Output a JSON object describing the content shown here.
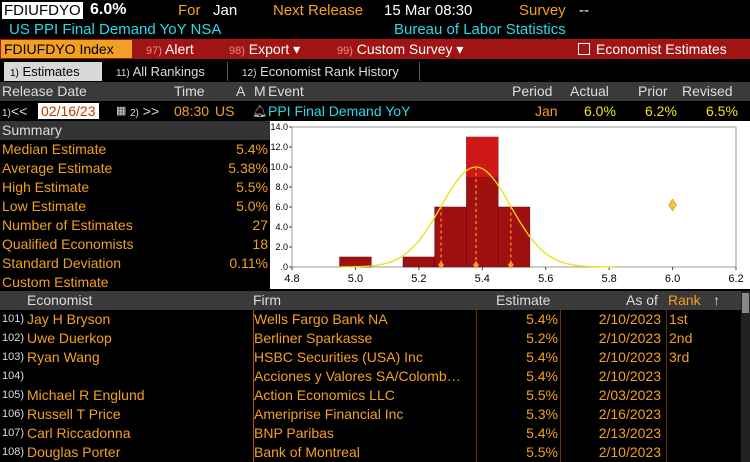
{
  "header": {
    "ticker": "FDIUFDYO",
    "value": "6.0%",
    "for_label": "For",
    "for_value": "Jan",
    "next_release_label": "Next Release",
    "next_release_value": "15 Mar 08:30",
    "survey_label": "Survey",
    "survey_value": "--",
    "description": "US PPI Final Demand YoY NSA",
    "source": "Bureau of Labor Statistics"
  },
  "toolbar": {
    "ticker_index": "FDIUFDYO Index",
    "alert_num": "97)",
    "alert_label": "Alert",
    "export_num": "98)",
    "export_label": "Export ▾",
    "custom_num": "99)",
    "custom_label": "Custom Survey ▾",
    "economist_label": "Economist Estimates"
  },
  "tabs": [
    {
      "num": "1)",
      "label": "Estimates"
    },
    {
      "num": "11)",
      "label": "All Rankings"
    },
    {
      "num": "12)",
      "label": "Economist Rank History"
    }
  ],
  "release_header": {
    "release_date": "Release Date",
    "time": "Time",
    "a": "A",
    "m": "M",
    "event": "Event",
    "period": "Period",
    "actual": "Actual",
    "prior": "Prior",
    "revised": "Revised"
  },
  "release_row": {
    "prev_num": "1)",
    "prev": "<<",
    "date": "02/16/23",
    "next_num": "2)",
    "next": ">>",
    "time": "08:30",
    "country": "US",
    "event": "PPI Final Demand YoY",
    "period": "Jan",
    "actual": "6.0%",
    "prior": "6.2%",
    "revised": "6.5%"
  },
  "summary": {
    "title": "Summary",
    "rows": [
      {
        "label": "Median Estimate",
        "value": "5.4%"
      },
      {
        "label": "Average Estimate",
        "value": "5.38%"
      },
      {
        "label": "High Estimate",
        "value": "5.5%"
      },
      {
        "label": "Low Estimate",
        "value": "5.0%"
      },
      {
        "label": "Number of Estimates",
        "value": "27"
      },
      {
        "label": "Qualified Economists",
        "value": "18"
      },
      {
        "label": "Standard Deviation",
        "value": "0.11%"
      },
      {
        "label": "Custom Estimate",
        "value": ""
      }
    ]
  },
  "chart_data": {
    "type": "bar",
    "x_ticks": [
      "4.8",
      "5.0",
      "5.2",
      "5.4",
      "5.6",
      "5.8",
      "6.0",
      "6.2"
    ],
    "y_ticks": [
      ".0",
      "2.0",
      "4.0",
      "6.0",
      "8.0",
      "10.0",
      "12.0",
      "14.0"
    ],
    "ylim": [
      0,
      14
    ],
    "xlim": [
      4.8,
      6.2
    ],
    "bins": [
      {
        "x": 5.0,
        "value": 1
      },
      {
        "x": 5.1,
        "value": 0
      },
      {
        "x": 5.2,
        "value": 1
      },
      {
        "x": 5.3,
        "value": 6
      },
      {
        "x": 5.4,
        "value": 13
      },
      {
        "x": 5.5,
        "value": 6
      }
    ],
    "normal_curve": {
      "mean": 5.38,
      "sd": 0.11
    },
    "markers_x": [
      5.27,
      5.38,
      5.49
    ],
    "actual_marker": {
      "x": 6.0,
      "y": 6.2
    },
    "colors": {
      "bar": "#a01010",
      "bar_top": "#d01818",
      "curve": "#e8e010",
      "marker": "#f0a030"
    }
  },
  "table": {
    "headers": {
      "economist": "Economist",
      "firm": "Firm",
      "estimate": "Estimate",
      "asof": "As of",
      "rank": "Rank"
    },
    "rows": [
      {
        "num": "101)",
        "economist": "Jay H Bryson",
        "firm": "Wells Fargo Bank NA",
        "estimate": "5.4%",
        "asof": "2/10/2023",
        "rank": "1st"
      },
      {
        "num": "102)",
        "economist": "Uwe Duerkop",
        "firm": "Berliner Sparkasse",
        "estimate": "5.2%",
        "asof": "2/10/2023",
        "rank": "2nd"
      },
      {
        "num": "103)",
        "economist": "Ryan Wang",
        "firm": "HSBC Securities (USA) Inc",
        "estimate": "5.4%",
        "asof": "2/10/2023",
        "rank": "3rd"
      },
      {
        "num": "104)",
        "economist": "",
        "firm": "Acciones y Valores SA/Colomb…",
        "estimate": "5.4%",
        "asof": "2/10/2023",
        "rank": ""
      },
      {
        "num": "105)",
        "economist": "Michael R Englund",
        "firm": "Action Economics LLC",
        "estimate": "5.5%",
        "asof": "2/03/2023",
        "rank": ""
      },
      {
        "num": "106)",
        "economist": "Russell T Price",
        "firm": "Ameriprise Financial Inc",
        "estimate": "5.3%",
        "asof": "2/16/2023",
        "rank": ""
      },
      {
        "num": "107)",
        "economist": "Carl Riccadonna",
        "firm": "BNP Paribas",
        "estimate": "5.4%",
        "asof": "2/13/2023",
        "rank": ""
      },
      {
        "num": "108)",
        "economist": "Douglas Porter",
        "firm": "Bank of Montreal",
        "estimate": "5.5%",
        "asof": "2/10/2023",
        "rank": ""
      }
    ]
  }
}
